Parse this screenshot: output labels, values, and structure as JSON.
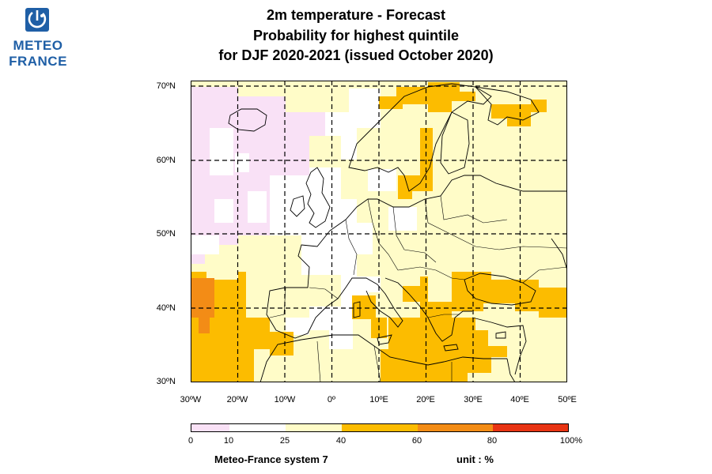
{
  "logo": {
    "line1": "METEO",
    "line2": "FRANCE",
    "color": "#1f5fa6"
  },
  "title": {
    "line1": "2m temperature   -   Forecast",
    "line2": "Probability for highest quintile",
    "line3": "for DJF 2020-2021   (issued October 2020)"
  },
  "axes": {
    "lat_labels": [
      "70ºN",
      "60ºN",
      "50ºN",
      "40ºN",
      "30ºN"
    ],
    "lon_labels": [
      "30ºW",
      "20ºW",
      "10ºW",
      "0º",
      "10ºE",
      "20ºE",
      "30ºE",
      "40ºE",
      "50ºE"
    ],
    "lat_range": [
      30,
      70
    ],
    "lon_range": [
      -30,
      50
    ]
  },
  "colorbar": {
    "ticks": [
      "0",
      "10",
      "25",
      "40",
      "60",
      "80",
      "100%"
    ],
    "bins": [
      {
        "from": 0,
        "to": 10,
        "color": "#f9e1f6"
      },
      {
        "from": 10,
        "to": 25,
        "color": "#ffffff"
      },
      {
        "from": 25,
        "to": 40,
        "color": "#fffcc8"
      },
      {
        "from": 40,
        "to": 60,
        "color": "#fcbc00"
      },
      {
        "from": 60,
        "to": 80,
        "color": "#f38c16"
      },
      {
        "from": 80,
        "to": 100,
        "color": "#e83413"
      }
    ]
  },
  "footer": {
    "system": "Meteo-France system 7",
    "unit": "unit : %"
  }
}
